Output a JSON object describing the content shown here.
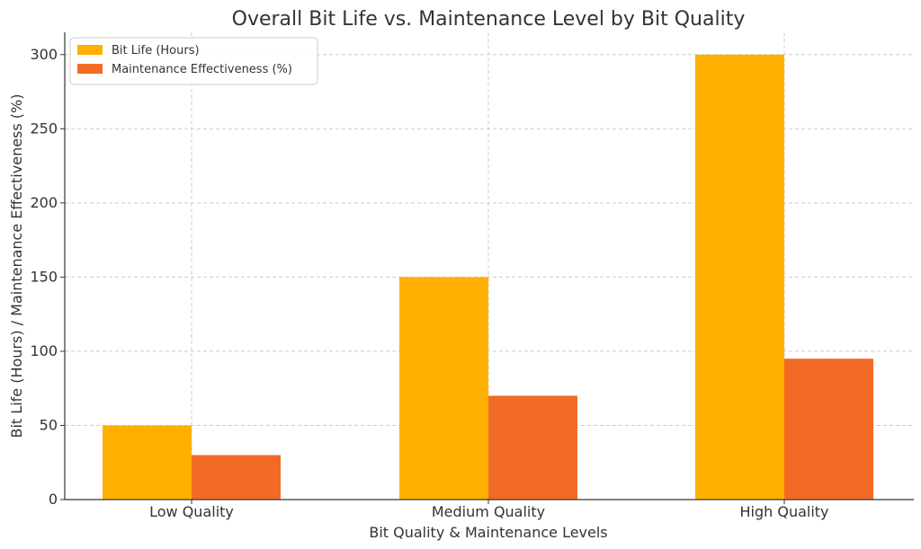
{
  "chart_data": {
    "type": "bar",
    "title": "Overall Bit Life vs. Maintenance Level by Bit Quality",
    "xlabel": "Bit Quality & Maintenance Levels",
    "ylabel": "Bit Life (Hours) / Maintenance Effectiveness (%)",
    "categories": [
      "Low Quality",
      "Medium Quality",
      "High Quality"
    ],
    "series": [
      {
        "name": "Bit Life (Hours)",
        "values": [
          50,
          150,
          300
        ],
        "color": "#FFB000"
      },
      {
        "name": "Maintenance Effectiveness (%)",
        "values": [
          30,
          70,
          95
        ],
        "color": "#F26B25"
      }
    ],
    "ylim": [
      0,
      315
    ],
    "yticks": [
      0,
      50,
      100,
      150,
      200,
      250,
      300
    ],
    "grid": true,
    "legend_position": "top-left"
  }
}
